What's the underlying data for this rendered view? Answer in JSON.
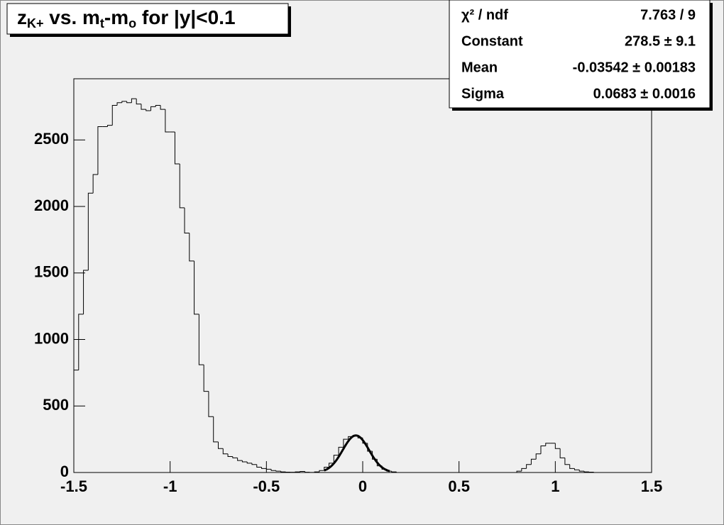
{
  "chart_data": {
    "type": "histogram",
    "title": [
      {
        "text": "z"
      },
      {
        "text": "K+",
        "sub": true
      },
      {
        "text": " vs. m"
      },
      {
        "text": "t",
        "sub": true
      },
      {
        "text": "-m"
      },
      {
        "text": "o",
        "sub": true
      },
      {
        "text": " for |y|<0.1"
      }
    ],
    "bins": [
      -1.5,
      -1.475,
      -1.45,
      -1.425,
      -1.4,
      -1.375,
      -1.35,
      -1.325,
      -1.3,
      -1.275,
      -1.25,
      -1.225,
      -1.2,
      -1.175,
      -1.15,
      -1.125,
      -1.1,
      -1.075,
      -1.05,
      -1.025,
      -1,
      -0.975,
      -0.95,
      -0.925,
      -0.9,
      -0.875,
      -0.85,
      -0.825,
      -0.8,
      -0.775,
      -0.75,
      -0.725,
      -0.7,
      -0.675,
      -0.65,
      -0.625,
      -0.6,
      -0.575,
      -0.55,
      -0.525,
      -0.5,
      -0.475,
      -0.45,
      -0.425,
      -0.4,
      -0.375,
      -0.35,
      -0.325,
      -0.3,
      -0.275,
      -0.25,
      -0.225,
      -0.2,
      -0.175,
      -0.15,
      -0.125,
      -0.1,
      -0.075,
      -0.05,
      -0.025,
      0,
      0.025,
      0.05,
      0.075,
      0.1,
      0.125,
      0.15,
      0.175,
      0.2,
      0.225,
      0.25,
      0.275,
      0.3,
      0.325,
      0.35,
      0.375,
      0.4,
      0.425,
      0.45,
      0.475,
      0.5,
      0.525,
      0.55,
      0.575,
      0.6,
      0.625,
      0.65,
      0.675,
      0.7,
      0.725,
      0.75,
      0.775,
      0.8,
      0.825,
      0.85,
      0.875,
      0.9,
      0.925,
      0.95,
      0.975,
      1,
      1.025,
      1.05,
      1.075,
      1.1,
      1.125,
      1.15,
      1.175,
      1.2,
      1.225,
      1.25,
      1.275,
      1.3,
      1.325,
      1.35,
      1.375,
      1.4,
      1.425,
      1.45,
      1.475,
      1.5
    ],
    "values": [
      770,
      1190,
      1520,
      2100,
      2240,
      2600,
      2600,
      2610,
      2760,
      2780,
      2790,
      2780,
      2810,
      2770,
      2730,
      2720,
      2750,
      2760,
      2730,
      2560,
      2560,
      2320,
      1990,
      1800,
      1590,
      1190,
      810,
      610,
      420,
      230,
      180,
      140,
      120,
      110,
      90,
      80,
      70,
      60,
      40,
      30,
      25,
      15,
      10,
      5,
      3,
      2,
      5,
      8,
      2,
      1,
      5,
      15,
      40,
      70,
      130,
      190,
      250,
      270,
      280,
      260,
      220,
      160,
      100,
      50,
      25,
      10,
      5,
      0,
      0,
      0,
      0,
      0,
      0,
      0,
      0,
      0,
      0,
      0,
      0,
      0,
      0,
      0,
      0,
      0,
      0,
      0,
      0,
      0,
      0,
      0,
      0,
      0,
      10,
      30,
      60,
      100,
      140,
      200,
      220,
      220,
      180,
      110,
      60,
      30,
      20,
      10,
      5,
      3,
      0,
      0,
      0,
      0,
      0,
      0,
      0,
      0,
      0,
      0,
      0,
      0
    ],
    "color": "#000000",
    "xlim": [
      -1.5,
      1.5
    ],
    "xticks": [
      -1.5,
      -1,
      -0.5,
      0,
      0.5,
      1,
      1.5
    ],
    "ylim": [
      0,
      2960
    ],
    "yticks": [
      0,
      500,
      1000,
      1500,
      2000,
      2500
    ],
    "fit": {
      "range": [
        -0.2,
        0.14
      ],
      "stats": [
        {
          "name": "χ² / ndf",
          "label": "7.763 / 9"
        },
        {
          "name": "Constant",
          "value": 278.5,
          "label": "278.5 ± 9.1"
        },
        {
          "name": "Mean",
          "value": -0.03542,
          "label": "-0.03542 ± 0.00183"
        },
        {
          "name": "Sigma",
          "value": 0.0683,
          "label": "0.0683 ± 0.0016"
        }
      ]
    }
  }
}
